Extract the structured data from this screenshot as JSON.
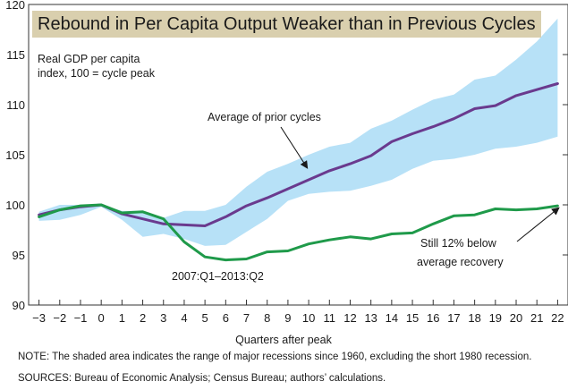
{
  "chart_data": {
    "type": "line",
    "title": "Rebound in Per Capita Output Weaker than in Previous Cycles",
    "ylabel_lines": [
      "Real GDP per capita",
      "index, 100 = cycle peak"
    ],
    "xlabel": "Quarters after peak",
    "x": [
      -3,
      -2,
      -1,
      0,
      1,
      2,
      3,
      4,
      5,
      6,
      7,
      8,
      9,
      10,
      11,
      12,
      13,
      14,
      15,
      16,
      17,
      18,
      19,
      20,
      21,
      22
    ],
    "xlim": [
      -3.5,
      22.5
    ],
    "ylim": [
      90,
      120
    ],
    "yticks": [
      90,
      95,
      100,
      105,
      110,
      115,
      120
    ],
    "series": [
      {
        "name": "Average of prior cycles",
        "color": "#6a3a8e",
        "values": [
          99.0,
          99.5,
          99.8,
          100.0,
          99.1,
          98.6,
          98.1,
          98.0,
          97.9,
          98.8,
          99.9,
          100.7,
          101.6,
          102.5,
          103.4,
          104.1,
          104.9,
          106.3,
          107.1,
          107.8,
          108.6,
          109.6,
          109.9,
          110.9,
          111.5,
          112.1
        ]
      },
      {
        "name": "2007:Q1–2013:Q2",
        "color": "#1f9a4a",
        "values": [
          98.8,
          99.5,
          99.9,
          100.0,
          99.2,
          99.3,
          98.6,
          96.3,
          94.8,
          94.5,
          94.6,
          95.3,
          95.4,
          96.1,
          96.5,
          96.8,
          96.6,
          97.1,
          97.2,
          98.1,
          98.9,
          99.0,
          99.6,
          99.5,
          99.6,
          99.9
        ]
      }
    ],
    "range_band": {
      "color": "#b7e1f7",
      "low": [
        98.4,
        98.5,
        99.0,
        99.8,
        98.5,
        96.8,
        97.1,
        96.6,
        95.9,
        96.0,
        97.3,
        98.6,
        100.4,
        101.1,
        101.3,
        101.4,
        101.9,
        102.5,
        103.6,
        104.4,
        104.6,
        105.0,
        105.6,
        105.8,
        106.2,
        106.8
      ],
      "high": [
        99.3,
        100.0,
        100.0,
        100.0,
        99.4,
        99.4,
        98.7,
        99.4,
        99.4,
        100.0,
        101.8,
        103.3,
        104.1,
        105.0,
        105.8,
        106.2,
        107.6,
        108.4,
        109.5,
        110.5,
        111.0,
        112.5,
        112.9,
        114.5,
        116.3,
        118.6
      ]
    },
    "annotations": {
      "avg_label": "Average of prior cycles",
      "period_label": "2007:Q1–2013:Q2",
      "recovery_line1": "Still 12% below",
      "recovery_line2": "average recovery"
    },
    "grid": false
  },
  "notes": {
    "note": "NOTE: The shaded area indicates the range of major recessions since 1960, excluding the short 1980 recession.",
    "sources": "SOURCES: Bureau of Economic Analysis; Census Bureau; authors’ calculations."
  }
}
